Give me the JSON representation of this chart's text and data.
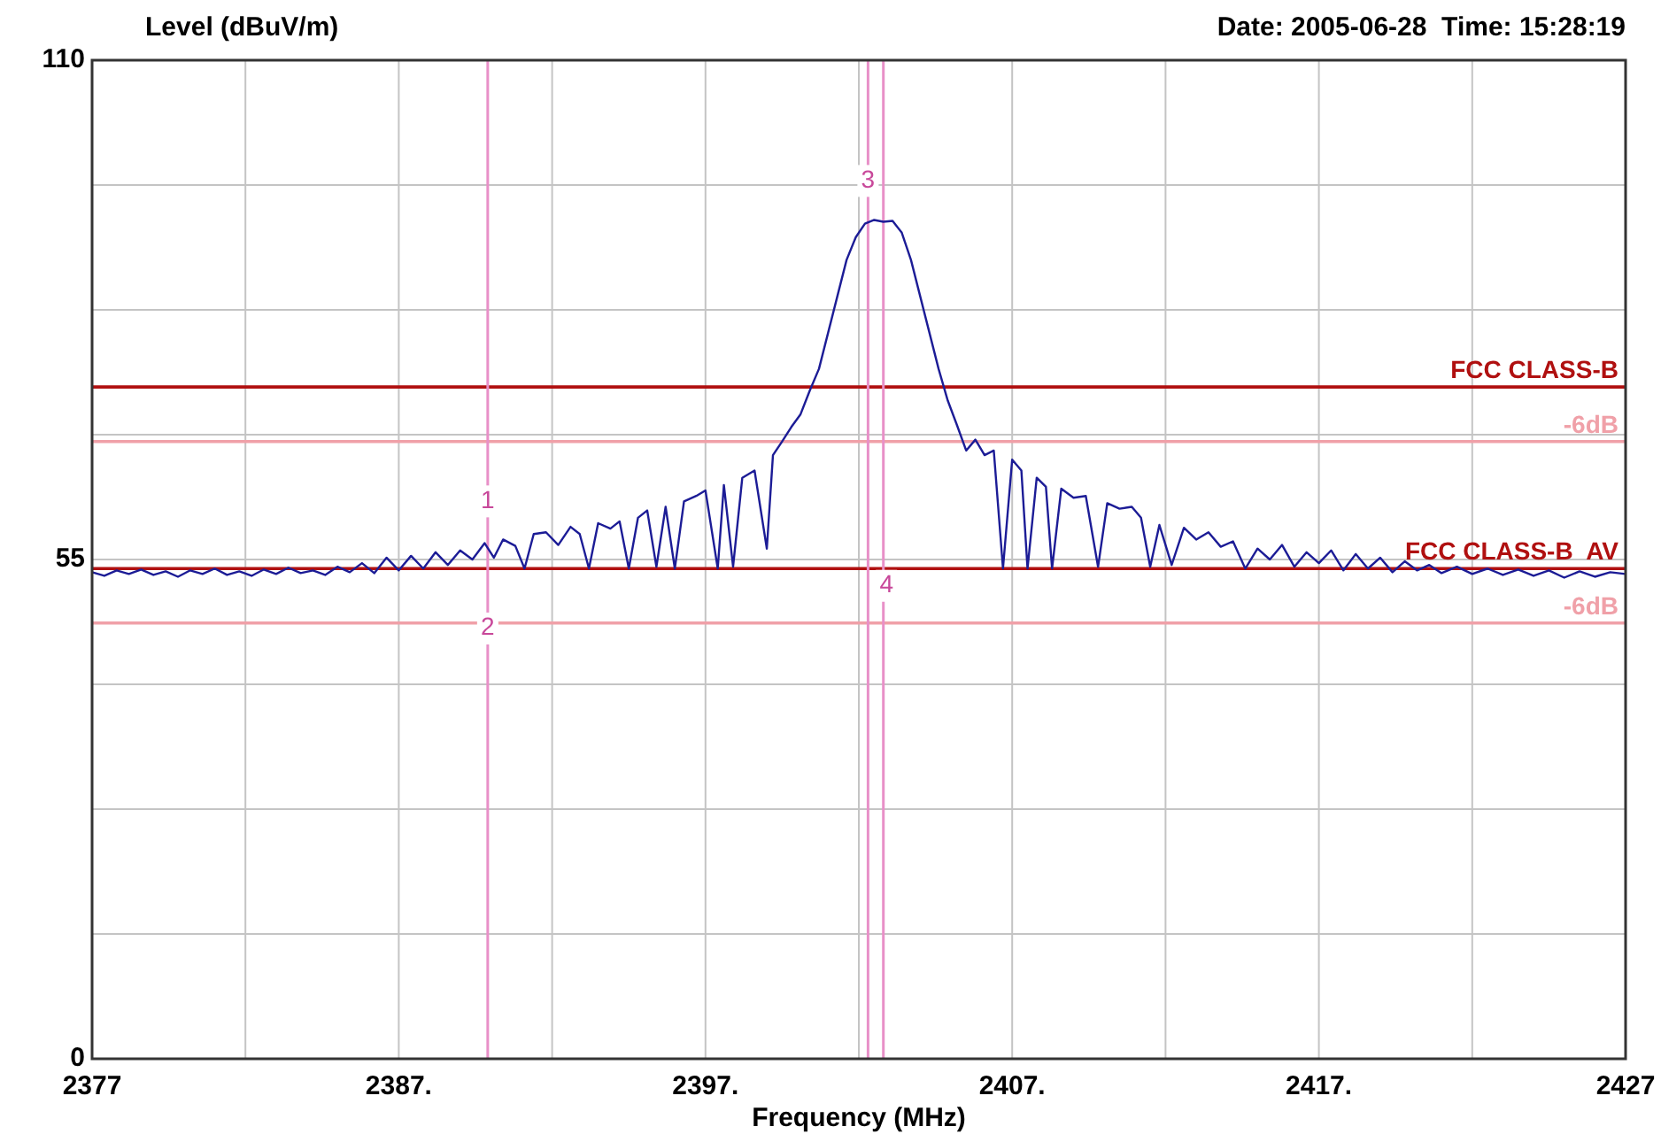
{
  "chart_data": {
    "type": "line",
    "ylabel": "Level (dBuV/m)",
    "xlabel": "Frequency (MHz)",
    "annotations": [
      "Date: 2005-06-28  Time: 15:28:19",
      {
        "text": "1",
        "x": 2389.9,
        "y": 61.4
      },
      {
        "text": "2",
        "x": 2389.9,
        "y": 47.4
      },
      {
        "text": "3",
        "x": 2402.3,
        "y": 96.7
      },
      {
        "text": "4",
        "x": 2402.9,
        "y": 52.1
      }
    ],
    "xlim": [
      2377,
      2427
    ],
    "xticks": [
      2377,
      {
        "value": 2382,
        "label": null
      },
      {
        "value": 2387,
        "label": "2387."
      },
      {
        "value": 2392,
        "label": null
      },
      {
        "value": 2397,
        "label": "2397."
      },
      {
        "value": 2402,
        "label": null
      },
      {
        "value": 2407,
        "label": "2407."
      },
      {
        "value": 2412,
        "label": null
      },
      {
        "value": 2417,
        "label": "2417."
      },
      {
        "value": 2422,
        "label": null
      },
      2427
    ],
    "ylim": [
      0,
      110
    ],
    "yticks": [
      0,
      {
        "value": 13.75,
        "label": null
      },
      {
        "value": 27.5,
        "label": null
      },
      {
        "value": 41.25,
        "label": null
      },
      55,
      {
        "value": 68.75,
        "label": null
      },
      {
        "value": 82.5,
        "label": null
      },
      {
        "value": 96.25,
        "label": null
      },
      110
    ],
    "grid": true,
    "ref_lines": [
      {
        "axis": "y",
        "value": 74,
        "label": "FCC CLASS-B",
        "color": "#b01010"
      },
      {
        "axis": "y",
        "value": 68,
        "label": "-6dB",
        "color": "#f0a0a8"
      },
      {
        "axis": "y",
        "value": 54,
        "label": "FCC CLASS-B  AV",
        "color": "#b01010"
      },
      {
        "axis": "y",
        "value": 48,
        "label": "-6dB",
        "color": "#f0a0a8"
      },
      {
        "axis": "x",
        "value": 2389.9,
        "color": "#e890c8"
      },
      {
        "axis": "x",
        "value": 2402.3,
        "color": "#e890c8"
      },
      {
        "axis": "x",
        "value": 2402.8,
        "color": "#e890c8"
      }
    ],
    "series": [
      {
        "color": "#1c1c96",
        "x": [
          2377,
          2377.4,
          2377.8,
          2378.2,
          2378.6,
          2379,
          2379.4,
          2379.8,
          2380.2,
          2380.6,
          2381,
          2381.4,
          2381.8,
          2382.2,
          2382.6,
          2383,
          2383.4,
          2383.8,
          2384.2,
          2384.6,
          2385,
          2385.4,
          2385.8,
          2386.2,
          2386.6,
          2387,
          2387.4,
          2387.8,
          2388.2,
          2388.6,
          2389,
          2389.4,
          2389.8,
          2390.1,
          2390.4,
          2390.8,
          2391.1,
          2391.4,
          2391.8,
          2392.2,
          2392.6,
          2392.9,
          2393.2,
          2393.5,
          2393.9,
          2394.2,
          2394.5,
          2394.8,
          2395.1,
          2395.4,
          2395.7,
          2396.0,
          2396.3,
          2396.7,
          2397.0,
          2397.4,
          2397.6,
          2397.9,
          2398.2,
          2398.6,
          2399.0,
          2399.2,
          2399.5,
          2399.8,
          2400.1,
          2400.4,
          2400.7,
          2401.0,
          2401.3,
          2401.6,
          2401.9,
          2402.2,
          2402.5,
          2402.8,
          2403.1,
          2403.4,
          2403.7,
          2404.0,
          2404.3,
          2404.6,
          2404.9,
          2405.2,
          2405.5,
          2405.8,
          2406.1,
          2406.4,
          2406.7,
          2407.0,
          2407.3,
          2407.5,
          2407.8,
          2408.1,
          2408.3,
          2408.6,
          2409.0,
          2409.4,
          2409.8,
          2410.1,
          2410.5,
          2410.9,
          2411.2,
          2411.5,
          2411.8,
          2412.2,
          2412.6,
          2413.0,
          2413.4,
          2413.8,
          2414.2,
          2414.6,
          2415.0,
          2415.4,
          2415.8,
          2416.2,
          2416.6,
          2417.0,
          2417.4,
          2417.8,
          2418.2,
          2418.6,
          2419.0,
          2419.4,
          2419.8,
          2420.2,
          2420.6,
          2421.0,
          2421.5,
          2422.0,
          2422.5,
          2423.0,
          2423.5,
          2424.0,
          2424.5,
          2425.0,
          2425.5,
          2426.0,
          2426.5,
          2427
        ],
        "values": [
          53.6,
          53.2,
          53.8,
          53.4,
          53.9,
          53.3,
          53.7,
          53.1,
          53.8,
          53.4,
          54.0,
          53.3,
          53.7,
          53.2,
          53.9,
          53.4,
          54.1,
          53.5,
          53.8,
          53.3,
          54.2,
          53.6,
          54.6,
          53.5,
          55.2,
          53.8,
          55.4,
          54.0,
          55.8,
          54.4,
          56.0,
          55.0,
          56.8,
          55.2,
          57.2,
          56.5,
          54.0,
          57.8,
          58.0,
          56.6,
          58.6,
          57.8,
          54.0,
          59.0,
          58.4,
          59.2,
          54.0,
          59.6,
          60.4,
          54.2,
          60.8,
          54.0,
          61.4,
          62.0,
          62.6,
          54.0,
          63.2,
          54.2,
          64.0,
          64.8,
          56.2,
          66.5,
          68.0,
          69.6,
          71.0,
          73.6,
          76.0,
          80.0,
          84.0,
          88.0,
          90.5,
          92.0,
          92.4,
          92.2,
          92.3,
          91.0,
          88.0,
          84.0,
          80.0,
          76.0,
          72.5,
          69.8,
          67.0,
          68.2,
          66.5,
          67.0,
          54.0,
          66.0,
          64.8,
          54.0,
          64.0,
          63.0,
          54.0,
          62.8,
          61.8,
          62.0,
          54.2,
          61.2,
          60.6,
          60.8,
          59.6,
          54.2,
          58.8,
          54.4,
          58.5,
          57.2,
          58.0,
          56.4,
          57.0,
          54.0,
          56.2,
          55.0,
          56.6,
          54.2,
          55.8,
          54.6,
          56.0,
          53.8,
          55.6,
          54.0,
          55.2,
          53.6,
          54.8,
          53.8,
          54.4,
          53.5,
          54.2,
          53.4,
          54.0,
          53.3,
          53.9,
          53.2,
          53.8,
          53.0,
          53.7,
          53.1,
          53.6,
          53.4
        ]
      }
    ]
  }
}
